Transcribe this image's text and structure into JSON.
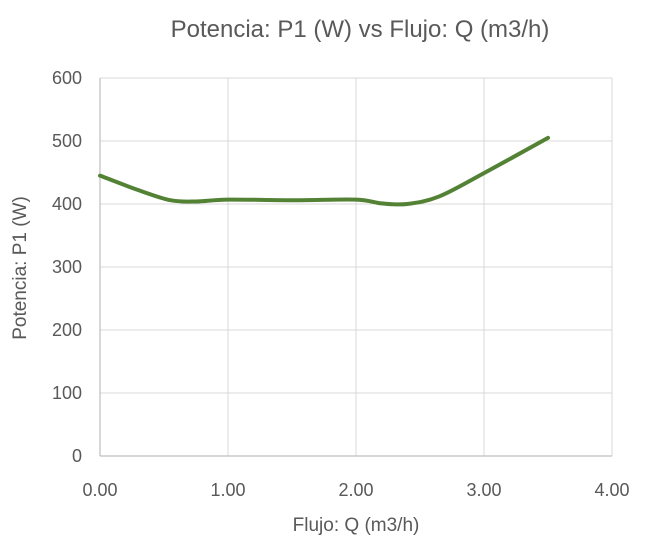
{
  "chart_data": {
    "type": "line",
    "title": "Potencia: P1 (W) vs Flujo: Q (m3/h)",
    "xlabel": "Flujo: Q (m3/h)",
    "ylabel": "Potencia: P1 (W)",
    "xlim": [
      0,
      4
    ],
    "ylim": [
      0,
      600
    ],
    "x_ticks": [
      "0.00",
      "1.00",
      "2.00",
      "3.00",
      "4.00"
    ],
    "y_ticks": [
      "0",
      "100",
      "200",
      "300",
      "400",
      "500",
      "600"
    ],
    "grid": true,
    "legend": "none",
    "series": [
      {
        "color": "#548235",
        "points": [
          [
            0.0,
            445
          ],
          [
            0.3,
            422
          ],
          [
            0.55,
            406
          ],
          [
            0.75,
            404
          ],
          [
            1.0,
            407
          ],
          [
            1.5,
            406
          ],
          [
            2.0,
            407
          ],
          [
            2.2,
            401
          ],
          [
            2.4,
            400
          ],
          [
            2.65,
            412
          ],
          [
            3.0,
            449
          ],
          [
            3.5,
            505
          ]
        ]
      }
    ]
  }
}
